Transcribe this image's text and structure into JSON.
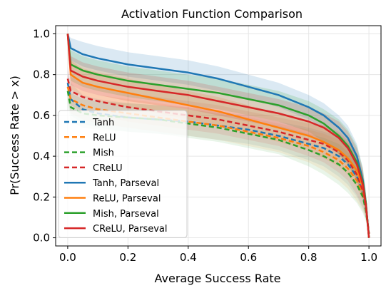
{
  "chart_data": {
    "type": "line",
    "title": "Activation Function Comparison",
    "xlabel": "Average Success Rate",
    "ylabel": "Pr(Success Rate > x)",
    "xlim": [
      -0.04,
      1.04
    ],
    "ylim": [
      -0.04,
      1.04
    ],
    "xticks": [
      0.0,
      0.2,
      0.4,
      0.6,
      0.8,
      1.0
    ],
    "yticks": [
      0.0,
      0.2,
      0.4,
      0.6,
      0.8,
      1.0
    ],
    "xtick_labels": [
      "0.0",
      "0.2",
      "0.4",
      "0.6",
      "0.8",
      "1.0"
    ],
    "ytick_labels": [
      "0.0",
      "0.2",
      "0.4",
      "0.6",
      "0.8",
      "1.0"
    ],
    "grid": true,
    "legend_position": "left-center",
    "x": [
      0.0,
      0.01,
      0.05,
      0.1,
      0.2,
      0.3,
      0.4,
      0.5,
      0.6,
      0.7,
      0.8,
      0.85,
      0.9,
      0.93,
      0.96,
      0.98,
      0.99,
      1.0
    ],
    "series": [
      {
        "name": "Tanh",
        "color": "#1f77b4",
        "dash": true,
        "values": [
          0.76,
          0.68,
          0.63,
          0.61,
          0.59,
          0.58,
          0.57,
          0.55,
          0.53,
          0.5,
          0.46,
          0.44,
          0.4,
          0.36,
          0.3,
          0.22,
          0.14,
          0.02
        ],
        "lower": [
          0.7,
          0.6,
          0.56,
          0.54,
          0.52,
          0.51,
          0.5,
          0.48,
          0.46,
          0.43,
          0.38,
          0.35,
          0.3,
          0.26,
          0.2,
          0.14,
          0.09,
          0.01
        ],
        "upper": [
          0.82,
          0.76,
          0.7,
          0.68,
          0.66,
          0.65,
          0.64,
          0.62,
          0.6,
          0.57,
          0.54,
          0.52,
          0.5,
          0.46,
          0.4,
          0.3,
          0.2,
          0.04
        ]
      },
      {
        "name": "ReLU",
        "color": "#ff7f0e",
        "dash": true,
        "values": [
          0.74,
          0.68,
          0.65,
          0.63,
          0.61,
          0.59,
          0.57,
          0.55,
          0.52,
          0.49,
          0.45,
          0.42,
          0.38,
          0.34,
          0.28,
          0.21,
          0.14,
          0.02
        ],
        "lower": [
          0.68,
          0.61,
          0.58,
          0.56,
          0.54,
          0.52,
          0.5,
          0.48,
          0.45,
          0.42,
          0.37,
          0.33,
          0.28,
          0.24,
          0.18,
          0.13,
          0.09,
          0.01
        ],
        "upper": [
          0.8,
          0.75,
          0.72,
          0.7,
          0.68,
          0.66,
          0.64,
          0.62,
          0.59,
          0.56,
          0.53,
          0.51,
          0.48,
          0.44,
          0.38,
          0.29,
          0.19,
          0.04
        ]
      },
      {
        "name": "Mish",
        "color": "#2ca02c",
        "dash": true,
        "values": [
          0.72,
          0.64,
          0.61,
          0.6,
          0.59,
          0.58,
          0.56,
          0.54,
          0.51,
          0.48,
          0.43,
          0.4,
          0.36,
          0.32,
          0.26,
          0.2,
          0.13,
          0.02
        ],
        "lower": [
          0.66,
          0.57,
          0.54,
          0.53,
          0.52,
          0.51,
          0.49,
          0.47,
          0.44,
          0.41,
          0.35,
          0.31,
          0.26,
          0.22,
          0.17,
          0.12,
          0.08,
          0.01
        ],
        "upper": [
          0.78,
          0.71,
          0.68,
          0.67,
          0.66,
          0.65,
          0.63,
          0.61,
          0.58,
          0.55,
          0.51,
          0.49,
          0.46,
          0.42,
          0.36,
          0.28,
          0.18,
          0.04
        ]
      },
      {
        "name": "CReLU",
        "color": "#d62728",
        "dash": true,
        "values": [
          0.78,
          0.72,
          0.69,
          0.67,
          0.64,
          0.62,
          0.6,
          0.58,
          0.55,
          0.52,
          0.48,
          0.46,
          0.42,
          0.38,
          0.31,
          0.23,
          0.15,
          0.02
        ],
        "lower": [
          0.72,
          0.65,
          0.62,
          0.6,
          0.57,
          0.55,
          0.53,
          0.51,
          0.48,
          0.45,
          0.4,
          0.37,
          0.32,
          0.28,
          0.21,
          0.15,
          0.1,
          0.01
        ],
        "upper": [
          0.84,
          0.79,
          0.76,
          0.74,
          0.71,
          0.69,
          0.67,
          0.65,
          0.62,
          0.59,
          0.56,
          0.55,
          0.52,
          0.48,
          0.41,
          0.31,
          0.2,
          0.04
        ]
      },
      {
        "name": "Tanh, Parseval",
        "color": "#1f77b4",
        "dash": false,
        "values": [
          1.0,
          0.93,
          0.9,
          0.88,
          0.85,
          0.83,
          0.81,
          0.78,
          0.74,
          0.7,
          0.64,
          0.6,
          0.54,
          0.49,
          0.4,
          0.28,
          0.17,
          0.0
        ],
        "lower": [
          0.95,
          0.87,
          0.84,
          0.82,
          0.79,
          0.77,
          0.75,
          0.72,
          0.68,
          0.64,
          0.58,
          0.54,
          0.48,
          0.43,
          0.34,
          0.22,
          0.12,
          0.0
        ],
        "upper": [
          1.0,
          0.98,
          0.96,
          0.94,
          0.91,
          0.89,
          0.87,
          0.84,
          0.8,
          0.76,
          0.7,
          0.66,
          0.6,
          0.55,
          0.46,
          0.34,
          0.22,
          0.01
        ]
      },
      {
        "name": "ReLU, Parseval",
        "color": "#ff7f0e",
        "dash": false,
        "values": [
          1.0,
          0.8,
          0.76,
          0.74,
          0.71,
          0.68,
          0.65,
          0.62,
          0.58,
          0.54,
          0.5,
          0.47,
          0.43,
          0.39,
          0.33,
          0.25,
          0.16,
          0.0
        ],
        "lower": [
          0.94,
          0.73,
          0.69,
          0.67,
          0.64,
          0.61,
          0.58,
          0.55,
          0.51,
          0.47,
          0.43,
          0.39,
          0.35,
          0.31,
          0.25,
          0.18,
          0.11,
          0.0
        ],
        "upper": [
          1.0,
          0.87,
          0.83,
          0.81,
          0.78,
          0.75,
          0.72,
          0.69,
          0.65,
          0.61,
          0.57,
          0.55,
          0.51,
          0.47,
          0.41,
          0.32,
          0.21,
          0.01
        ]
      },
      {
        "name": "Mish, Parseval",
        "color": "#2ca02c",
        "dash": false,
        "values": [
          1.0,
          0.85,
          0.82,
          0.8,
          0.77,
          0.75,
          0.73,
          0.71,
          0.68,
          0.65,
          0.6,
          0.56,
          0.5,
          0.45,
          0.37,
          0.27,
          0.17,
          0.0
        ],
        "lower": [
          0.93,
          0.77,
          0.74,
          0.72,
          0.69,
          0.67,
          0.65,
          0.63,
          0.6,
          0.57,
          0.52,
          0.47,
          0.41,
          0.36,
          0.28,
          0.2,
          0.12,
          0.0
        ],
        "upper": [
          1.0,
          0.92,
          0.89,
          0.87,
          0.84,
          0.82,
          0.8,
          0.78,
          0.75,
          0.72,
          0.67,
          0.63,
          0.58,
          0.53,
          0.45,
          0.34,
          0.22,
          0.01
        ]
      },
      {
        "name": "CReLU, Parseval",
        "color": "#d62728",
        "dash": false,
        "values": [
          1.0,
          0.82,
          0.79,
          0.77,
          0.74,
          0.72,
          0.7,
          0.67,
          0.64,
          0.61,
          0.57,
          0.54,
          0.49,
          0.44,
          0.36,
          0.26,
          0.16,
          0.0
        ],
        "lower": [
          0.94,
          0.75,
          0.72,
          0.7,
          0.67,
          0.65,
          0.63,
          0.6,
          0.57,
          0.54,
          0.5,
          0.46,
          0.41,
          0.36,
          0.28,
          0.19,
          0.11,
          0.0
        ],
        "upper": [
          1.0,
          0.89,
          0.86,
          0.84,
          0.81,
          0.79,
          0.77,
          0.74,
          0.71,
          0.68,
          0.64,
          0.61,
          0.57,
          0.52,
          0.44,
          0.33,
          0.21,
          0.01
        ]
      }
    ]
  }
}
